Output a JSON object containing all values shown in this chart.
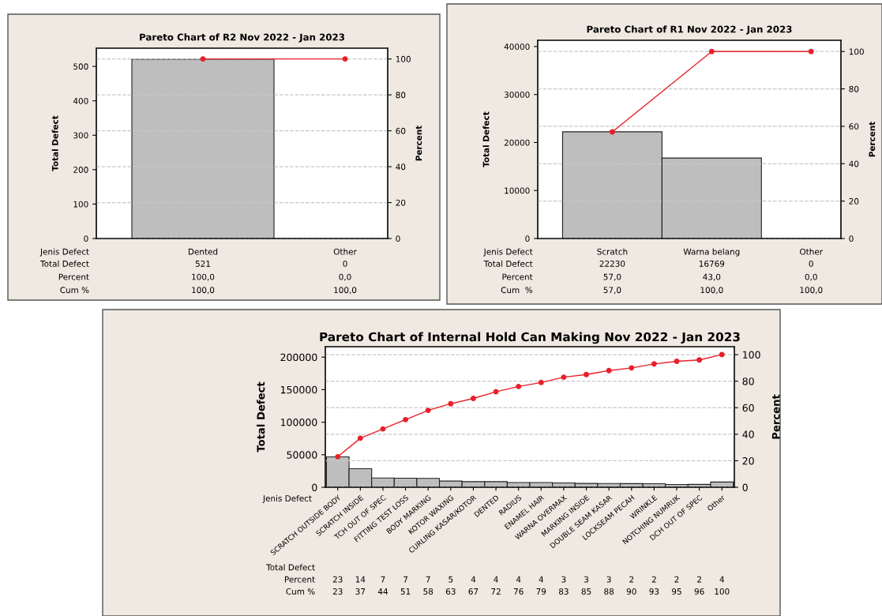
{
  "chart_data": [
    {
      "type": "bar",
      "title": "Pareto Chart of R2 Nov 2022 - Jan 2023",
      "xlabel": "Jenis Defect",
      "ylabel": "Total Defect",
      "y2label": "Percent",
      "categories": [
        "Dented",
        "Other"
      ],
      "ylim": [
        0,
        553
      ],
      "yticks": [
        0,
        100,
        200,
        300,
        400,
        500
      ],
      "y2lim": [
        0,
        106
      ],
      "y2ticks": [
        0,
        20,
        40,
        60,
        80,
        100
      ],
      "grid": "y",
      "marker": "circle",
      "series": [
        {
          "color": "#bebebe",
          "values": [
            521,
            0
          ],
          "value_labels": [
            "521",
            "0"
          ]
        },
        {
          "type": "line",
          "axis": "y2",
          "color": "#e8202a",
          "values": [
            100,
            100
          ],
          "value_labels": [
            "100,0",
            "100,0"
          ]
        }
      ],
      "annotations": [
        "Total Defect",
        "Percent",
        "Cum %",
        "100,0",
        "0,0"
      ]
    },
    {
      "type": "bar",
      "title": "Pareto Chart of R1 Nov 2022 - Jan 2023",
      "xlabel": "Jenis Defect",
      "ylabel": "Total Defect",
      "y2label": "Percent",
      "categories": [
        "Scratch",
        "Warna belang",
        "Other"
      ],
      "ylim": [
        0,
        41300
      ],
      "yticks": [
        0,
        10000,
        20000,
        30000,
        40000
      ],
      "y2lim": [
        0,
        106
      ],
      "y2ticks": [
        0,
        20,
        40,
        60,
        80,
        100
      ],
      "grid": "y",
      "marker": "circle",
      "series": [
        {
          "color": "#bebebe",
          "values": [
            22230,
            16769,
            0
          ],
          "value_labels": [
            "22230",
            "16769",
            "0"
          ]
        },
        {
          "type": "line",
          "axis": "y2",
          "color": "#e8202a",
          "values": [
            57,
            100,
            100
          ],
          "value_labels": [
            "57,0",
            "100,0",
            "100,0"
          ]
        }
      ],
      "annotations": [
        "Total Defect",
        "Percent",
        "Cum  %",
        "57,0",
        "43,0",
        "0,0"
      ]
    },
    {
      "type": "bar",
      "title": "Pareto Chart of Internal Hold Can Making Nov 2022 - Jan 2023",
      "xlabel": "Jenis Defect",
      "ylabel": "Total Defect",
      "y2label": "Percent",
      "categories": [
        "SCRATCH OUTSIDE BODY",
        "SCRATCH INSIDE",
        "TCH OUT OF SPEC",
        "FITTING TEST LOSS",
        "BODY MARKING",
        "KOTOR WAXING",
        "CURLING KASAR/KOTOR",
        "DENTED",
        "RADIUS",
        "ENAMEL HAIR",
        "WARNA OVERMAX",
        "MARKING INSIDE",
        "DOUBLE SEAM KASAR",
        "LOCKSEAM PECAH",
        "WRINKLE",
        "NOTCHING NUMRUK",
        "DCH OUT OF SPEC",
        "Other"
      ],
      "ylim": [
        0,
        216000
      ],
      "yticks": [
        0,
        50000,
        100000,
        150000,
        200000
      ],
      "y2lim": [
        0,
        106
      ],
      "y2ticks": [
        0,
        20,
        40,
        60,
        80,
        100
      ],
      "grid": "y",
      "marker": "circle",
      "series": [
        {
          "color": "#bebebe",
          "values": [
            46800,
            28500,
            14300,
            14000,
            13700,
            9500,
            8700,
            8700,
            7300,
            7200,
            6700,
            5900,
            5800,
            5600,
            5500,
            4300,
            4400,
            8100
          ]
        },
        {
          "type": "line",
          "axis": "y2",
          "color": "#e8202a",
          "values": [
            23,
            37,
            44,
            51,
            58,
            63,
            67,
            72,
            76,
            79,
            83,
            85,
            88,
            90,
            93,
            95,
            96,
            100
          ],
          "value_labels": [
            "23",
            "37",
            "44",
            "51",
            "58",
            "63",
            "67",
            "72",
            "76",
            "79",
            "83",
            "85",
            "88",
            "90",
            "93",
            "95",
            "96",
            "100"
          ]
        }
      ],
      "annotations": [
        "Total Defect",
        "Percent",
        "Cum %",
        "23",
        "14",
        "7",
        "7",
        "7",
        "5",
        "4",
        "4",
        "4",
        "4",
        "3",
        "3",
        "3",
        "2",
        "2",
        "2",
        "2",
        "4"
      ]
    }
  ]
}
